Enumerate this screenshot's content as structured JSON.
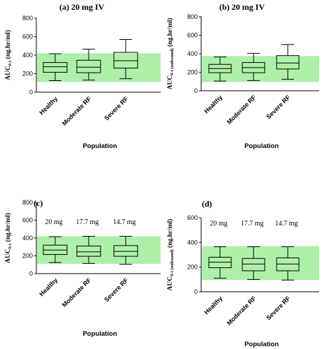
{
  "chart_data": [
    {
      "type": "box",
      "title": "(a) 20 mg IV",
      "ylabel": "AUC",
      "ylabel_sub": "0-t",
      "ylabel_unit": " (ng.hr/ml)",
      "xlabel": "Population",
      "categories": [
        "Healthy",
        "Moderate RF",
        "Severe RF"
      ],
      "ylim": [
        0,
        800
      ],
      "yticks": [
        "0",
        "200",
        "400",
        "600",
        "800"
      ],
      "band": [
        110,
        420
      ],
      "boxes": [
        {
          "min": 125,
          "q1": 215,
          "median": 275,
          "q3": 320,
          "max": 415
        },
        {
          "min": 130,
          "q1": 210,
          "median": 270,
          "q3": 345,
          "max": 465
        },
        {
          "min": 145,
          "q1": 260,
          "median": 340,
          "q3": 430,
          "max": 570
        }
      ],
      "annotations": []
    },
    {
      "type": "box",
      "title": "(b) 20 mg IV",
      "ylabel": "AUC",
      "ylabel_sub": "0-t (unbound)",
      "ylabel_unit": " (ng.hr/ml)",
      "xlabel": "Population",
      "categories": [
        "Healthy",
        "Moderate RF",
        "Severe RF"
      ],
      "ylim": [
        0,
        800
      ],
      "yticks": [
        "0",
        "200",
        "400",
        "600",
        "800"
      ],
      "band": [
        95,
        375
      ],
      "boxes": [
        {
          "min": 105,
          "q1": 195,
          "median": 240,
          "q3": 285,
          "max": 365
        },
        {
          "min": 110,
          "q1": 195,
          "median": 250,
          "q3": 305,
          "max": 405
        },
        {
          "min": 125,
          "q1": 235,
          "median": 300,
          "q3": 380,
          "max": 500
        }
      ],
      "annotations": []
    },
    {
      "type": "box",
      "title": "(c)",
      "ylabel": "AUC",
      "ylabel_sub": "0-t",
      "ylabel_unit": " (ng.hr/ml)",
      "xlabel": "Population",
      "categories": [
        "Healthy",
        "Moderate RF",
        "Severe RF"
      ],
      "ylim": [
        0,
        800
      ],
      "yticks": [
        "0",
        "200",
        "400",
        "600",
        "800"
      ],
      "band": [
        110,
        420
      ],
      "boxes": [
        {
          "min": 125,
          "q1": 215,
          "median": 265,
          "q3": 320,
          "max": 415
        },
        {
          "min": 115,
          "q1": 195,
          "median": 245,
          "q3": 310,
          "max": 420
        },
        {
          "min": 105,
          "q1": 195,
          "median": 250,
          "q3": 315,
          "max": 420
        }
      ],
      "annotations": [
        "20 mg",
        "17.7 mg",
        "14.7 mg"
      ]
    },
    {
      "type": "box",
      "title": "(d)",
      "ylabel": "AUC",
      "ylabel_sub": "0-t (unbound)",
      "ylabel_unit": " (ng.hr/ml)",
      "xlabel": "Population",
      "categories": [
        "Healthy",
        "Moderate RF",
        "Severe RF"
      ],
      "ylim": [
        0,
        600
      ],
      "yticks": [
        "0",
        "200",
        "400",
        "600"
      ],
      "band": [
        95,
        370
      ],
      "boxes": [
        {
          "min": 110,
          "q1": 195,
          "median": 240,
          "q3": 280,
          "max": 365
        },
        {
          "min": 100,
          "q1": 170,
          "median": 225,
          "q3": 270,
          "max": 365
        },
        {
          "min": 95,
          "q1": 170,
          "median": 225,
          "q3": 275,
          "max": 365
        }
      ],
      "annotations": [
        "20 mg",
        "17.7 mg",
        "14.7 mg"
      ]
    }
  ]
}
